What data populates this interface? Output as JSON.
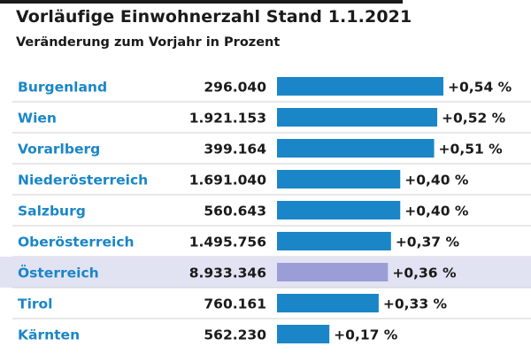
{
  "header": {
    "title": "Vorläufige Einwohnerzahl Stand 1.1.2021",
    "subtitle": "Veränderung zum Vorjahr in Prozent"
  },
  "colors": {
    "bar": "#1a86c8",
    "bar_highlight": "#9b9ed6",
    "row_highlight": "#e1e3f3",
    "label": "#1a86c8",
    "label_highlight": "#1a86c8",
    "separator": "#d0d0d0"
  },
  "chart_data": {
    "type": "bar",
    "orientation": "horizontal",
    "title": "Vorläufige Einwohnerzahl Stand 1.1.2021",
    "subtitle": "Veränderung zum Vorjahr in Prozent",
    "xlim": [
      0,
      0.54
    ],
    "rows": [
      {
        "region": "Burgenland",
        "population": "296.040",
        "change": 0.54,
        "change_label": "+0,54 %",
        "highlight": false
      },
      {
        "region": "Wien",
        "population": "1.921.153",
        "change": 0.52,
        "change_label": "+0,52 %",
        "highlight": false
      },
      {
        "region": "Vorarlberg",
        "population": "399.164",
        "change": 0.51,
        "change_label": "+0,51 %",
        "highlight": false
      },
      {
        "region": "Niederösterreich",
        "population": "1.691.040",
        "change": 0.4,
        "change_label": "+0,40 %",
        "highlight": false
      },
      {
        "region": "Salzburg",
        "population": "560.643",
        "change": 0.4,
        "change_label": "+0,40 %",
        "highlight": false
      },
      {
        "region": "Oberösterreich",
        "population": "1.495.756",
        "change": 0.37,
        "change_label": "+0,37 %",
        "highlight": false
      },
      {
        "region": "Österreich",
        "population": "8.933.346",
        "change": 0.36,
        "change_label": "+0,36 %",
        "highlight": true
      },
      {
        "region": "Tirol",
        "population": "760.161",
        "change": 0.33,
        "change_label": "+0,33 %",
        "highlight": false
      },
      {
        "region": "Kärnten",
        "population": "562.230",
        "change": 0.17,
        "change_label": "+0,17 %",
        "highlight": false
      }
    ]
  }
}
